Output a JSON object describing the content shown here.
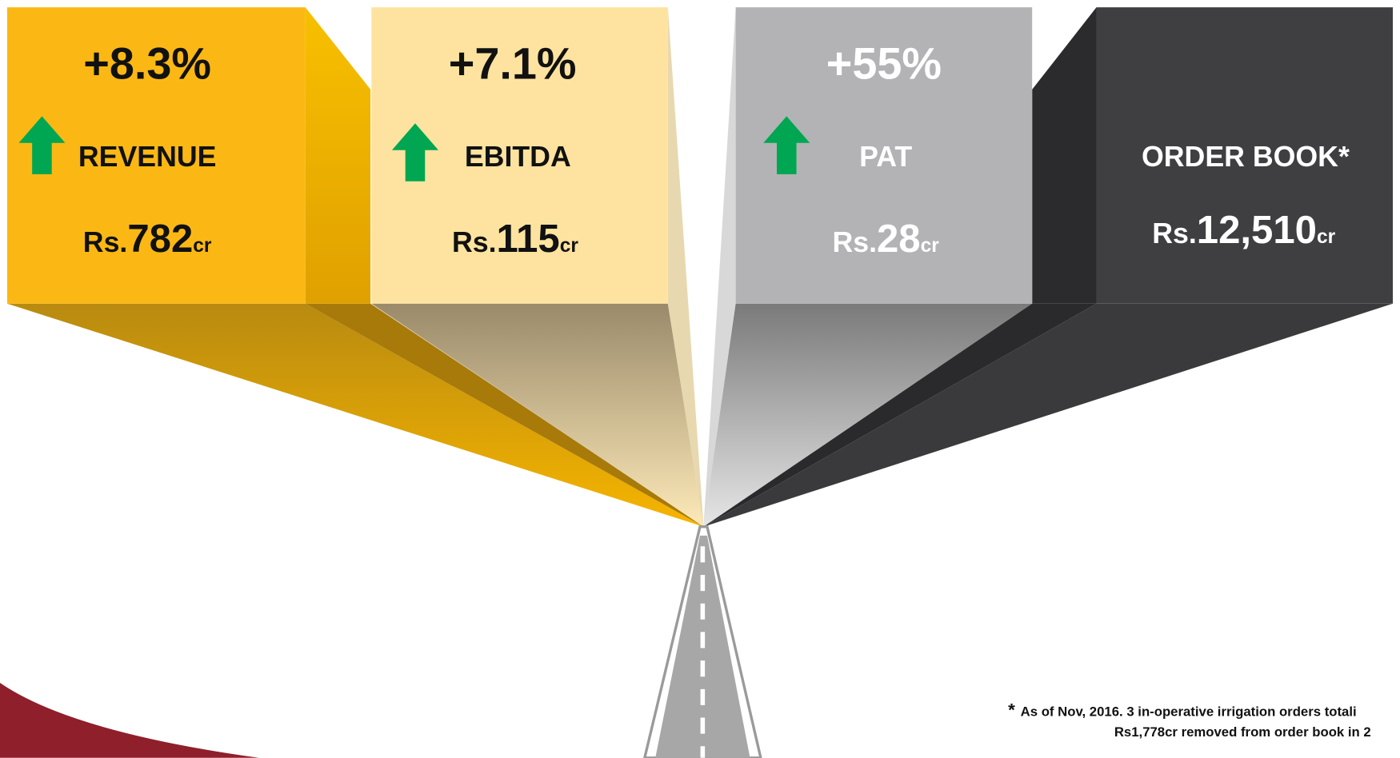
{
  "cards": [
    {
      "change": "+8.3%",
      "label": "REVENUE",
      "prefix": "Rs.",
      "amount": "782",
      "unit": "cr"
    },
    {
      "change": "+7.1%",
      "label": "EBITDA",
      "prefix": "Rs.",
      "amount": "115",
      "unit": "cr"
    },
    {
      "change": "+55%",
      "label": "PAT",
      "prefix": "Rs.",
      "amount": "28",
      "unit": "cr"
    },
    {
      "label": "ORDER BOOK*",
      "prefix": "Rs.",
      "amount": "12,510",
      "unit": "cr"
    }
  ],
  "footnote": {
    "mark": "*",
    "lines": [
      "As of Nov, 2016. 3 in-operative irrigation orders totali",
      "Rs1,778cr removed from order book in 2"
    ]
  }
}
